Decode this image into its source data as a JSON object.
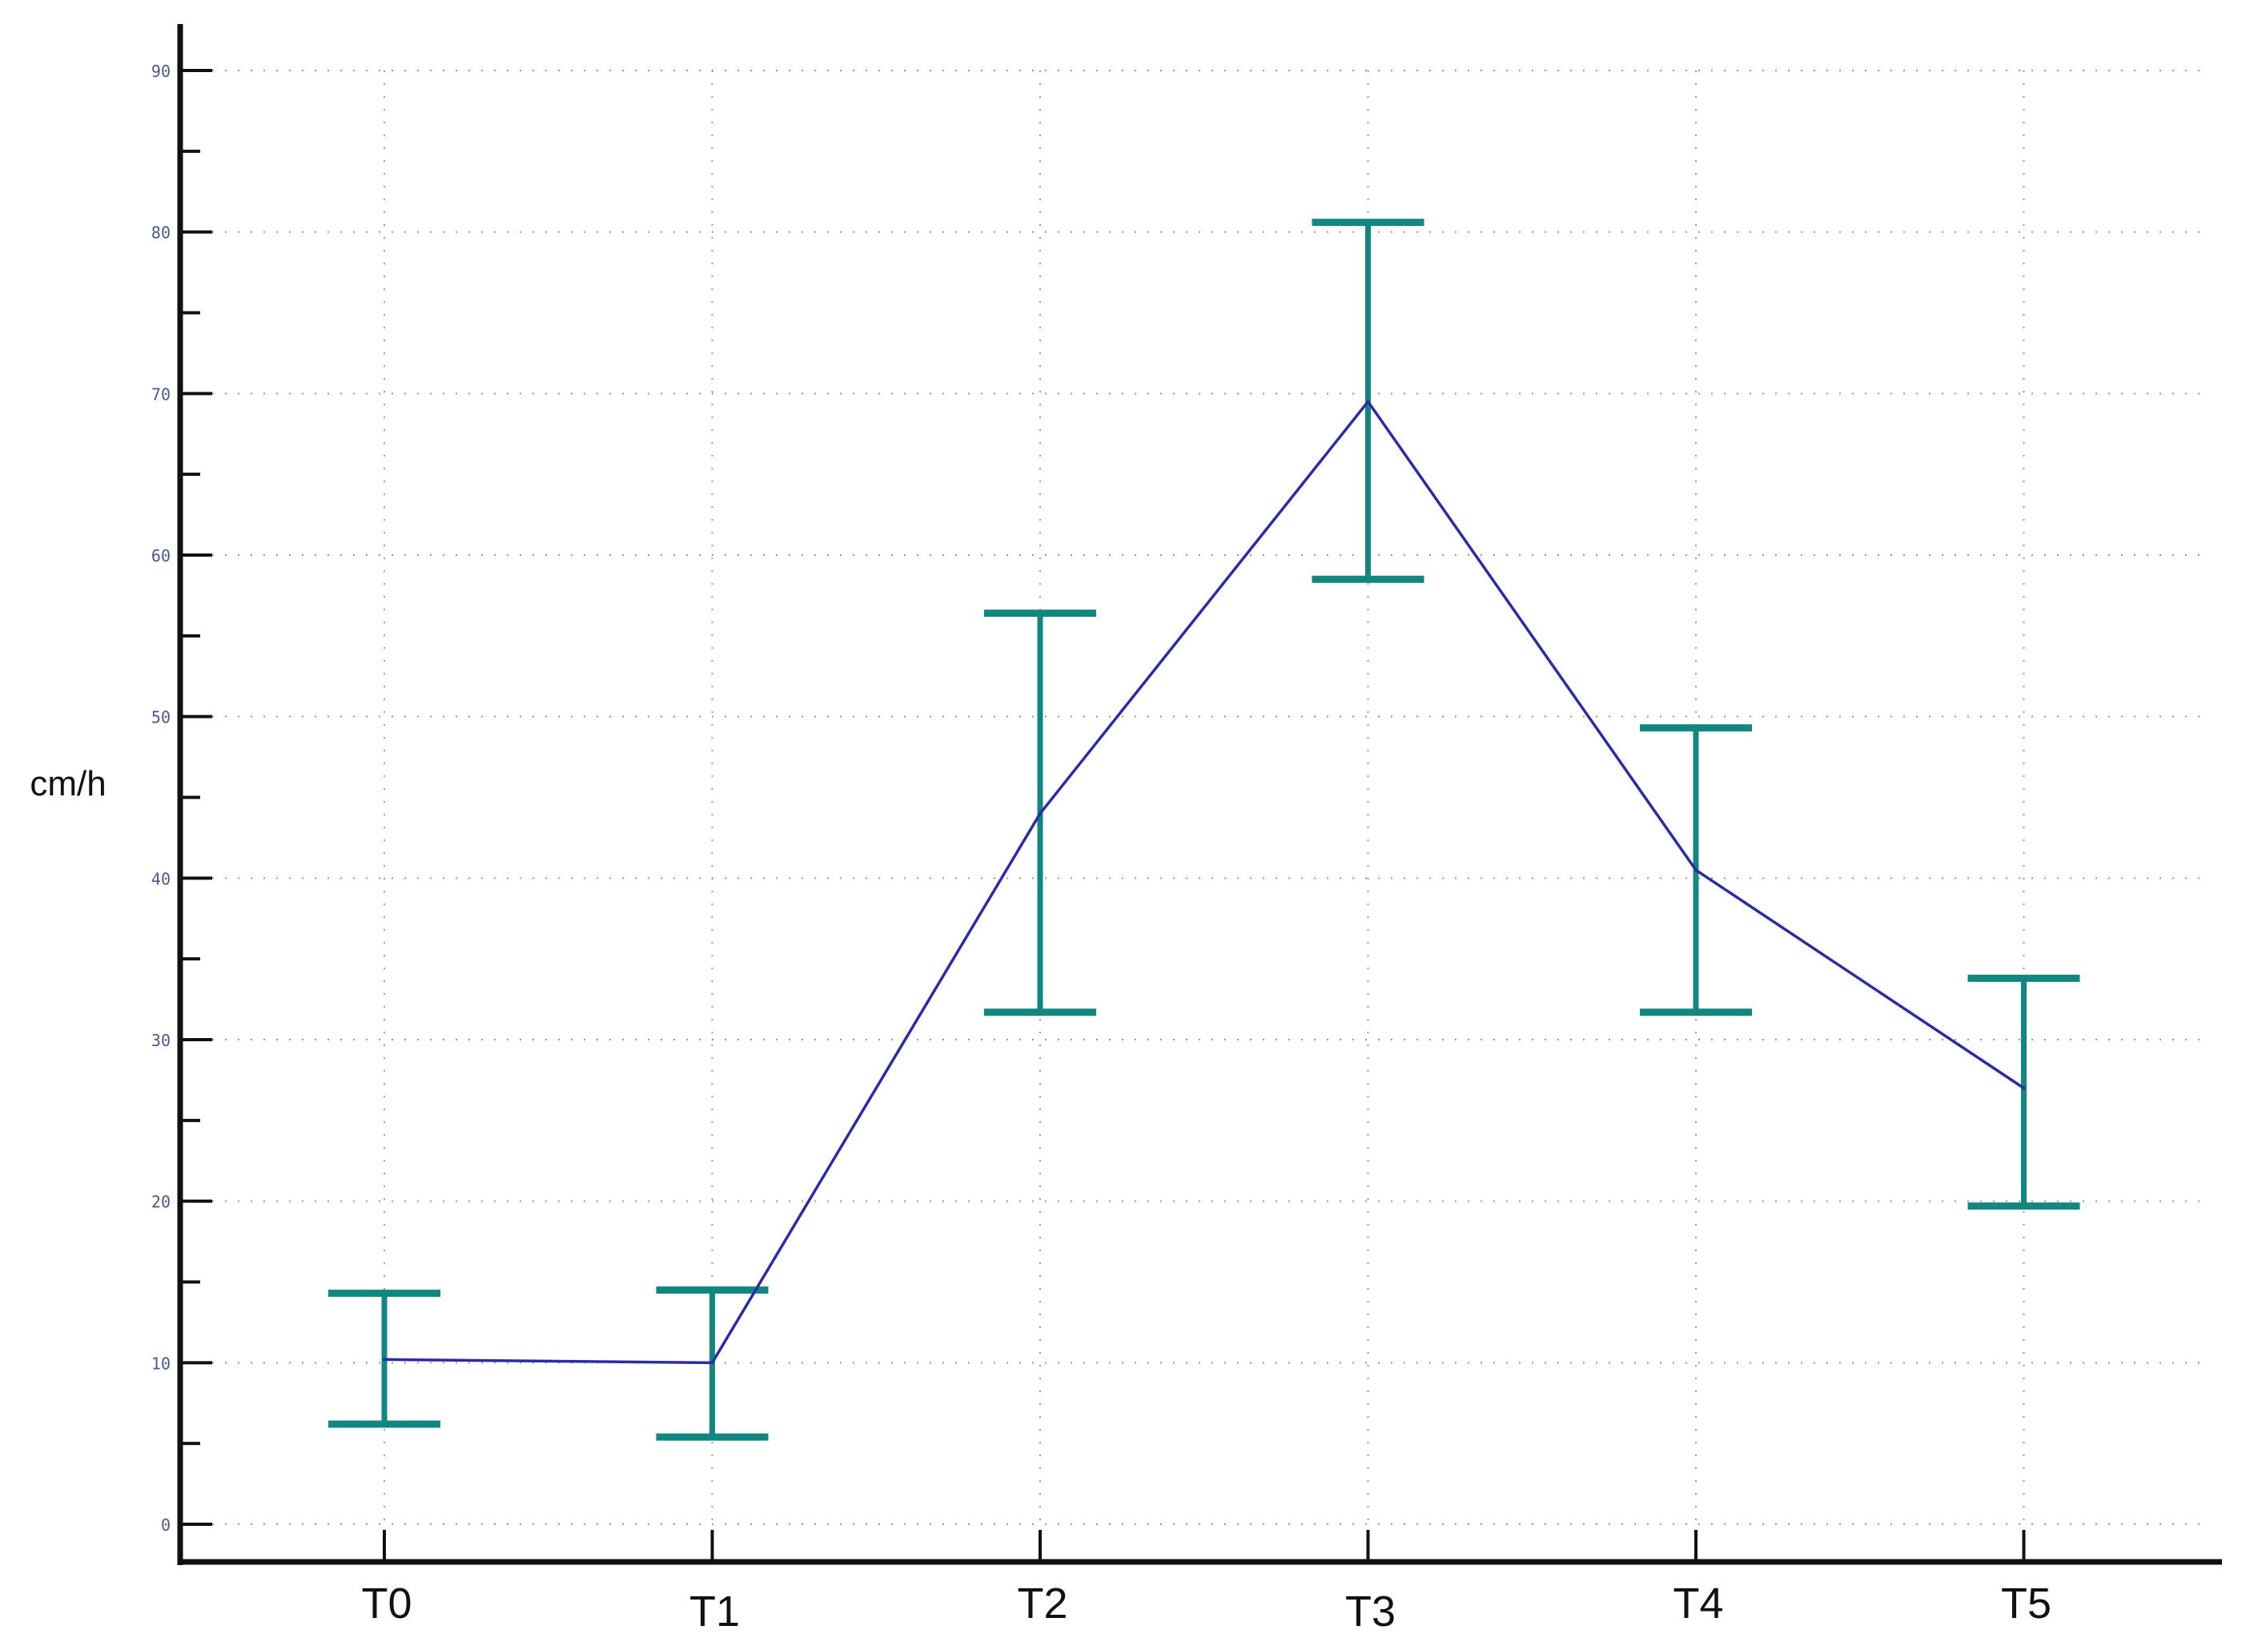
{
  "chart_data": {
    "type": "line",
    "title": "",
    "xlabel": "",
    "ylabel": "cm/h",
    "categories": [
      "T0",
      "T1",
      "T2",
      "T3",
      "T4",
      "T5"
    ],
    "ylim": [
      0,
      90
    ],
    "yticks": [
      0,
      10,
      20,
      30,
      40,
      50,
      60,
      70,
      80,
      90
    ],
    "grid": true,
    "series": [
      {
        "values": [
          10.2,
          10.0,
          44.0,
          69.5,
          40.5,
          27.0
        ],
        "error_low": [
          6.2,
          5.4,
          31.7,
          58.5,
          31.7,
          19.7
        ],
        "error_high": [
          14.3,
          14.5,
          56.4,
          80.6,
          49.3,
          33.8
        ]
      }
    ],
    "colors": {
      "line": "#2b2ba6",
      "error_bars": "#12877f",
      "axis": "#111111",
      "grid": "#9a9a9a"
    }
  }
}
